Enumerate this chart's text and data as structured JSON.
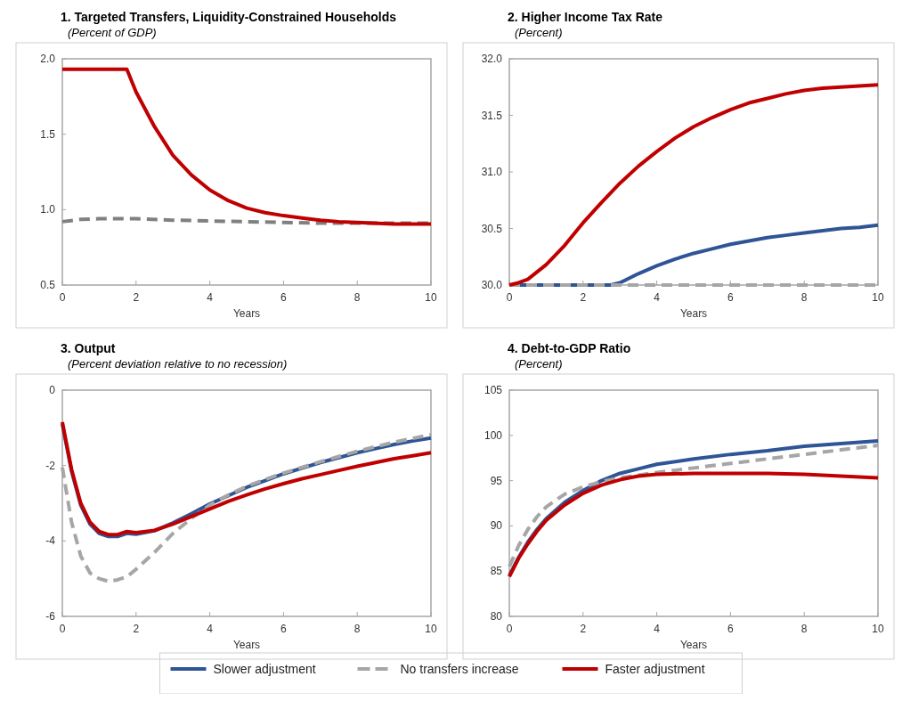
{
  "chart_data": [
    {
      "type": "line",
      "title": "1. Targeted Transfers, Liquidity-Constrained Households",
      "subtitle": "(Percent of GDP)",
      "xlabel": "Years",
      "xlim": [
        0,
        10
      ],
      "xticks": [
        0,
        2,
        4,
        6,
        8,
        10
      ],
      "ylim": [
        0.5,
        2
      ],
      "yticks": [
        {
          "value": 0.5,
          "label": "0.5"
        },
        {
          "value": 1,
          "label": "1.0"
        },
        {
          "value": 1.5,
          "label": "1.5"
        },
        {
          "value": 2,
          "label": "2.0"
        }
      ],
      "marker": "none",
      "series": [
        {
          "color": "#808080",
          "line_style": "dashed",
          "x": [
            0,
            0.5,
            1,
            2,
            3,
            4,
            5,
            6,
            7,
            8,
            9,
            10
          ],
          "values": [
            0.92,
            0.935,
            0.94,
            0.94,
            0.93,
            0.925,
            0.92,
            0.915,
            0.91,
            0.91,
            0.91,
            0.91
          ]
        },
        {
          "color": "#c00000",
          "line_style": "solid",
          "x": [
            0,
            1.75,
            2,
            2.5,
            3,
            3.5,
            4,
            4.5,
            5,
            5.5,
            6,
            6.5,
            7,
            7.5,
            8,
            9,
            10
          ],
          "values": [
            1.93,
            1.93,
            1.78,
            1.55,
            1.36,
            1.23,
            1.13,
            1.06,
            1.01,
            0.98,
            0.96,
            0.945,
            0.93,
            0.92,
            0.915,
            0.905,
            0.905
          ]
        }
      ]
    },
    {
      "type": "line",
      "title": "2. Higher Income Tax Rate",
      "subtitle": "(Percent)",
      "xlabel": "Years",
      "xlim": [
        0,
        10
      ],
      "xticks": [
        0,
        2,
        4,
        6,
        8,
        10
      ],
      "ylim": [
        30,
        32
      ],
      "yticks": [
        {
          "value": 30,
          "label": "30.0"
        },
        {
          "value": 30.5,
          "label": "30.5"
        },
        {
          "value": 31,
          "label": "31.0"
        },
        {
          "value": 31.5,
          "label": "31.5"
        },
        {
          "value": 32,
          "label": "32.0"
        }
      ],
      "marker": "none",
      "series": [
        {
          "color": "#2f5597",
          "line_style": "solid",
          "x": [
            0,
            2.75,
            3,
            3.5,
            4,
            4.5,
            5,
            5.5,
            6,
            6.5,
            7,
            7.5,
            8,
            8.5,
            9,
            9.5,
            10
          ],
          "values": [
            30,
            30,
            30.02,
            30.1,
            30.17,
            30.23,
            30.28,
            30.32,
            30.36,
            30.39,
            30.42,
            30.44,
            30.46,
            30.48,
            30.5,
            30.51,
            30.53
          ]
        },
        {
          "color": "#a6a6a6",
          "line_style": "dashed",
          "x": [
            0,
            10
          ],
          "values": [
            30,
            30
          ]
        },
        {
          "color": "#c00000",
          "line_style": "solid",
          "x": [
            0,
            0.25,
            0.5,
            1,
            1.5,
            2,
            2.5,
            3,
            3.5,
            4,
            4.5,
            5,
            5.5,
            6,
            6.5,
            7,
            7.5,
            8,
            8.5,
            9,
            9.5,
            10
          ],
          "values": [
            30,
            30.02,
            30.05,
            30.18,
            30.35,
            30.55,
            30.73,
            30.9,
            31.05,
            31.18,
            31.3,
            31.4,
            31.48,
            31.55,
            31.61,
            31.65,
            31.69,
            31.72,
            31.74,
            31.75,
            31.76,
            31.77
          ]
        }
      ]
    },
    {
      "type": "line",
      "title": "3. Output",
      "subtitle": "(Percent deviation relative to no recession)",
      "xlabel": "Years",
      "xlim": [
        0,
        10
      ],
      "xticks": [
        0,
        2,
        4,
        6,
        8,
        10
      ],
      "ylim": [
        -6,
        0
      ],
      "yticks": [
        -6,
        -4,
        -2,
        0
      ],
      "marker": "none",
      "legend": "bottom",
      "series": [
        {
          "name": "Slower adjustment",
          "color": "#2f5597",
          "line_style": "solid",
          "x": [
            0,
            0.25,
            0.5,
            0.75,
            1,
            1.25,
            1.5,
            1.75,
            2,
            2.5,
            3,
            3.5,
            4,
            4.5,
            5,
            5.5,
            6,
            6.5,
            7,
            7.5,
            8,
            8.5,
            9,
            9.5,
            10
          ],
          "values": [
            -0.9,
            -2.15,
            -3.05,
            -3.55,
            -3.8,
            -3.88,
            -3.88,
            -3.8,
            -3.82,
            -3.73,
            -3.52,
            -3.28,
            -3.02,
            -2.8,
            -2.58,
            -2.4,
            -2.22,
            -2.07,
            -1.92,
            -1.79,
            -1.66,
            -1.55,
            -1.44,
            -1.35,
            -1.27
          ]
        },
        {
          "name": "No transfers increase",
          "color": "#a6a6a6",
          "line_style": "dashed",
          "x": [
            0,
            0.25,
            0.5,
            0.75,
            1,
            1.25,
            1.5,
            1.75,
            2,
            2.5,
            3,
            3.5,
            4,
            4.5,
            5,
            5.5,
            6,
            6.5,
            7,
            7.5,
            8,
            8.5,
            9,
            9.5,
            10
          ],
          "values": [
            -2.05,
            -3.5,
            -4.4,
            -4.85,
            -5.0,
            -5.07,
            -5.03,
            -4.95,
            -4.75,
            -4.3,
            -3.8,
            -3.4,
            -3.05,
            -2.78,
            -2.55,
            -2.37,
            -2.2,
            -2.05,
            -1.9,
            -1.76,
            -1.62,
            -1.5,
            -1.38,
            -1.28,
            -1.18
          ]
        },
        {
          "name": "Faster adjustment",
          "color": "#c00000",
          "line_style": "solid",
          "x": [
            0,
            0.25,
            0.5,
            0.75,
            1,
            1.25,
            1.5,
            1.75,
            2,
            2.5,
            3,
            3.5,
            4,
            4.5,
            5,
            5.5,
            6,
            6.5,
            7,
            7.5,
            8,
            8.5,
            9,
            9.5,
            10
          ],
          "values": [
            -0.85,
            -2.1,
            -3.0,
            -3.5,
            -3.75,
            -3.83,
            -3.83,
            -3.75,
            -3.78,
            -3.72,
            -3.55,
            -3.35,
            -3.15,
            -2.95,
            -2.78,
            -2.62,
            -2.48,
            -2.35,
            -2.24,
            -2.13,
            -2.02,
            -1.92,
            -1.82,
            -1.74,
            -1.66
          ]
        }
      ]
    },
    {
      "type": "line",
      "title": "4. Debt-to-GDP Ratio",
      "subtitle": "(Percent)",
      "xlabel": "Years",
      "xlim": [
        0,
        10
      ],
      "xticks": [
        0,
        2,
        4,
        6,
        8,
        10
      ],
      "ylim": [
        80,
        105
      ],
      "yticks": [
        80,
        85,
        90,
        95,
        100,
        105
      ],
      "marker": "none",
      "series": [
        {
          "color": "#2f5597",
          "line_style": "solid",
          "x": [
            0,
            0.25,
            0.5,
            0.75,
            1,
            1.5,
            2,
            2.5,
            3,
            3.5,
            4,
            5,
            6,
            7,
            8,
            9,
            10
          ],
          "values": [
            84.5,
            86.5,
            88.2,
            89.6,
            90.8,
            92.6,
            93.9,
            95.0,
            95.8,
            96.3,
            96.8,
            97.4,
            97.9,
            98.3,
            98.8,
            99.1,
            99.4
          ]
        },
        {
          "color": "#a6a6a6",
          "line_style": "dashed",
          "x": [
            0,
            0.25,
            0.5,
            0.75,
            1,
            1.5,
            2,
            2.5,
            3,
            3.5,
            4,
            5,
            6,
            7,
            8,
            9,
            10
          ],
          "values": [
            85.5,
            87.8,
            89.6,
            91.0,
            92.1,
            93.5,
            94.3,
            94.9,
            95.3,
            95.6,
            95.9,
            96.4,
            96.9,
            97.4,
            97.9,
            98.4,
            98.9
          ]
        },
        {
          "color": "#c00000",
          "line_style": "solid",
          "x": [
            0,
            0.25,
            0.5,
            0.75,
            1,
            1.5,
            2,
            2.5,
            3,
            3.5,
            4,
            5,
            6,
            7,
            8,
            9,
            10
          ],
          "values": [
            84.4,
            86.4,
            88.0,
            89.4,
            90.6,
            92.3,
            93.6,
            94.5,
            95.1,
            95.5,
            95.7,
            95.8,
            95.8,
            95.8,
            95.7,
            95.5,
            95.3
          ]
        }
      ]
    }
  ]
}
